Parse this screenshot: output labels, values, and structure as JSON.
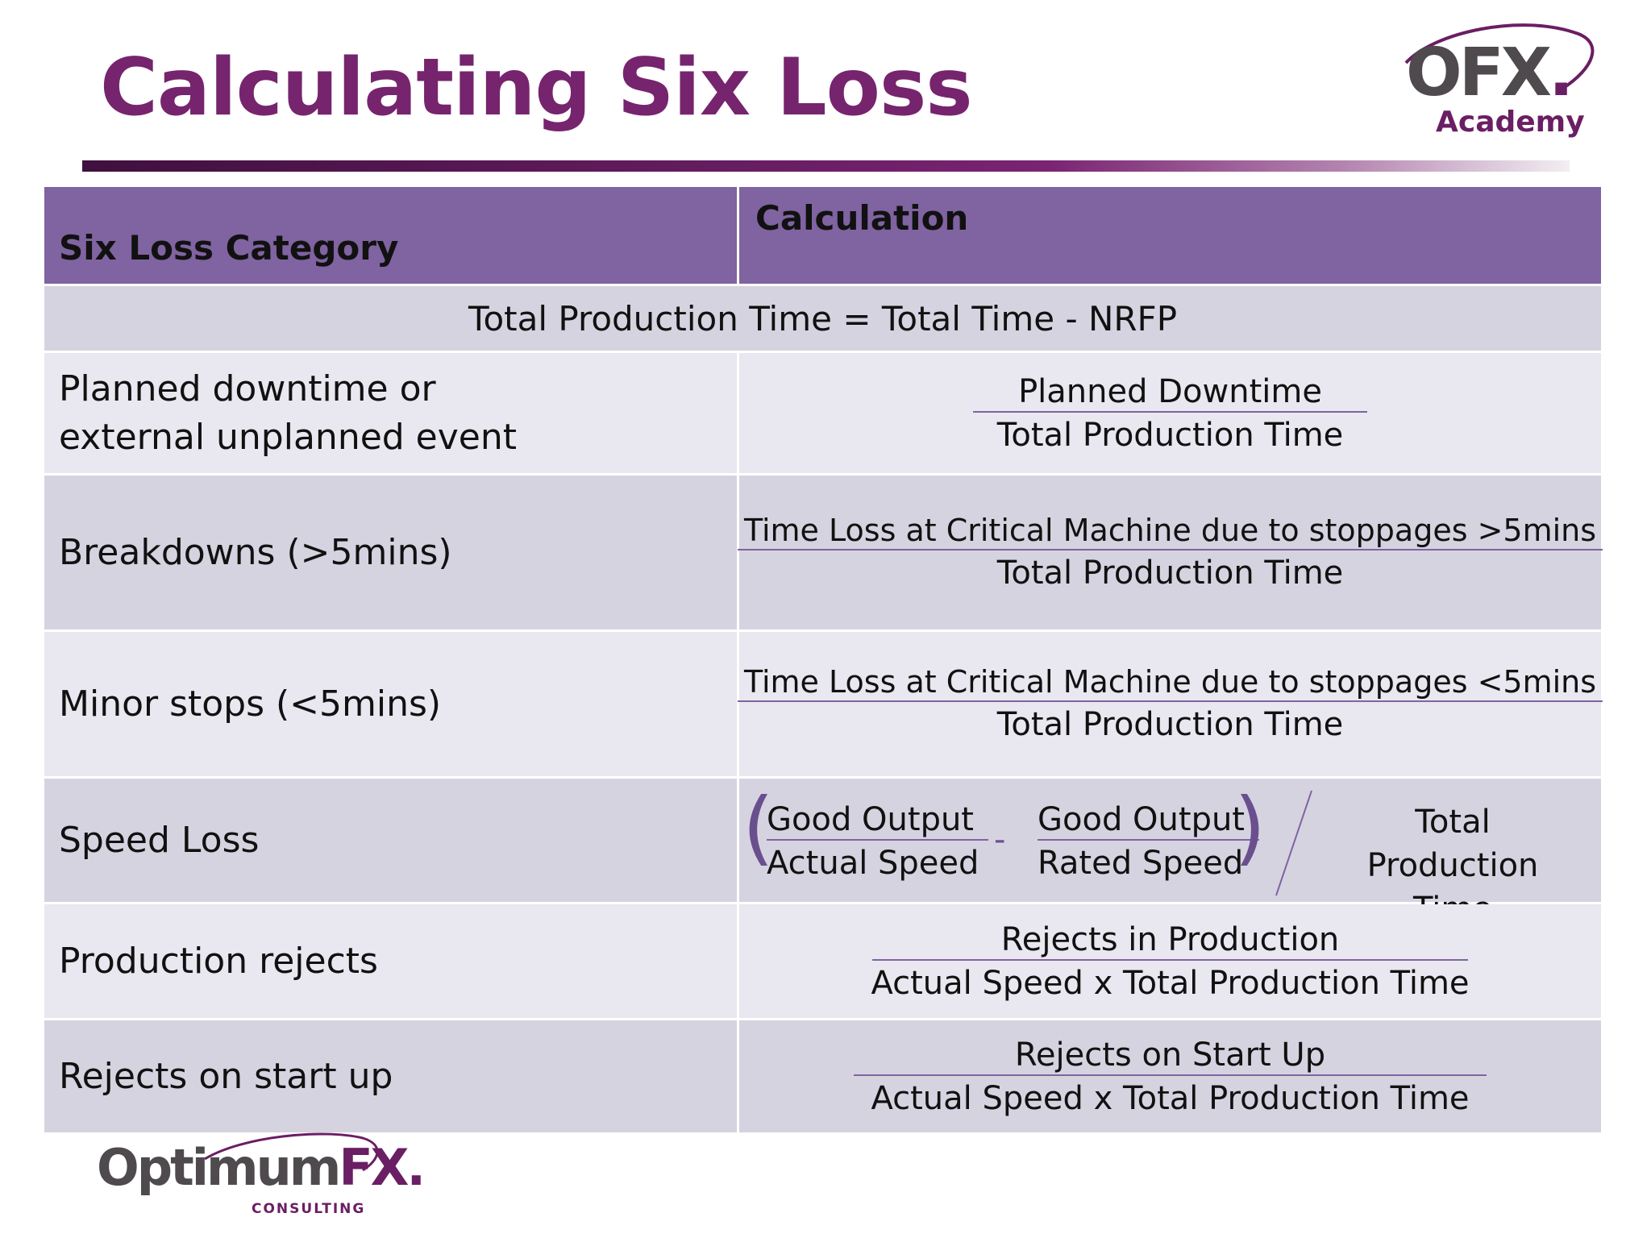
{
  "slide": {
    "title": "Calculating Six Loss"
  },
  "brand": {
    "ofx_logo_main": "OFX",
    "ofx_logo_dot": ".",
    "ofx_logo_sub": "Academy",
    "optimum_logo_main": "Optimum",
    "optimum_logo_fx": "FX.",
    "optimum_logo_sub": "CONSULTING",
    "accent_color": "#76246e",
    "header_color": "#8063a1"
  },
  "table": {
    "headers": {
      "category": "Six Loss Category",
      "calculation": "Calculation"
    },
    "total_row": "Total Production Time = Total Time - NRFP",
    "rows": [
      {
        "category": "Planned downtime or external unplanned event",
        "numerator": "Planned Downtime",
        "denominator": "Total Production Time"
      },
      {
        "category": "Breakdowns (>5mins)",
        "numerator": "Time Loss at Critical Machine due to stoppages >5mins",
        "denominator": "Total Production Time"
      },
      {
        "category": "Minor stops (<5mins)",
        "numerator": "Time Loss at Critical Machine due to stoppages <5mins",
        "denominator": "Total Production Time"
      },
      {
        "category": "Speed Loss",
        "left_numerator": "Good Output",
        "left_denominator": "Actual Speed",
        "operator": "-",
        "right_numerator": "Good Output",
        "right_denominator": "Rated Speed",
        "divisor": "Total Production Time"
      },
      {
        "category": "Production rejects",
        "numerator": "Rejects in Production",
        "denominator": "Actual Speed x Total Production Time"
      },
      {
        "category": "Rejects on start up",
        "numerator": "Rejects on Start Up",
        "denominator": "Actual Speed x Total Production Time"
      }
    ]
  }
}
